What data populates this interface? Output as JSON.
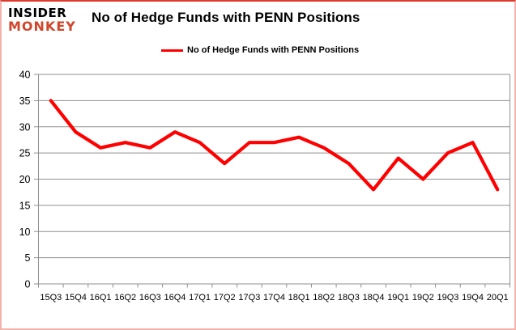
{
  "header": {
    "logo_line1": "INSIDER",
    "logo_line2": "MONKEY",
    "title": "No of Hedge Funds with PENN Positions"
  },
  "legend": {
    "label": "No of Hedge Funds with PENN Positions"
  },
  "chart_data": {
    "type": "line",
    "title": "No of Hedge Funds with PENN Positions",
    "categories": [
      "15Q3",
      "15Q4",
      "16Q1",
      "16Q2",
      "16Q3",
      "16Q4",
      "17Q1",
      "17Q2",
      "17Q3",
      "17Q4",
      "18Q1",
      "18Q2",
      "18Q3",
      "18Q4",
      "19Q1",
      "19Q2",
      "19Q3",
      "19Q4",
      "20Q1"
    ],
    "series": [
      {
        "name": "No of Hedge Funds with PENN Positions",
        "color": "#fe0000",
        "values": [
          35,
          29,
          26,
          27,
          26,
          29,
          27,
          23,
          27,
          27,
          28,
          26,
          23,
          18,
          24,
          20,
          25,
          27,
          18
        ]
      }
    ],
    "ylim": [
      0,
      40
    ],
    "yticks": [
      0,
      5,
      10,
      15,
      20,
      25,
      30,
      35,
      40
    ],
    "xlabel": "",
    "ylabel": "",
    "grid": true,
    "legend_position": "top-center"
  },
  "colors": {
    "series_red": "#fe0000",
    "logo_red": "#d0462c",
    "grid_gray": "#8f8f8f",
    "text_black": "#000000",
    "frame_pink": "#f3b3ab",
    "frame_top_red": "#e0392b",
    "background": "#ffffff"
  }
}
